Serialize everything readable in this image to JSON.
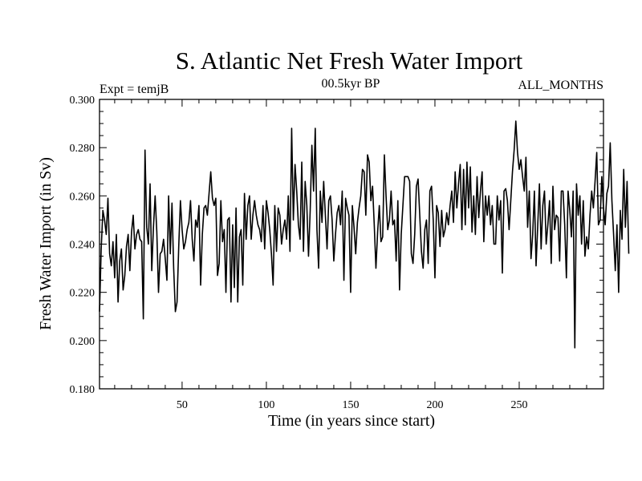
{
  "chart_data": {
    "type": "line",
    "title": "S. Atlantic Net Fresh Water Import",
    "subtitle_left": "Expt = temjB",
    "subtitle_center": "00.5kyr BP",
    "subtitle_right": "ALL_MONTHS",
    "xlabel": "Time (in years since start)",
    "ylabel": "Fresh Water Import (in Sv)",
    "xlim": [
      1,
      300
    ],
    "ylim": [
      0.18,
      0.3
    ],
    "x_ticks": [
      50,
      100,
      150,
      200,
      250
    ],
    "x_tick_labels": [
      "50",
      "100",
      "150",
      "200",
      "250"
    ],
    "y_ticks": [
      0.18,
      0.2,
      0.22,
      0.24,
      0.26,
      0.28,
      0.3
    ],
    "y_tick_labels": [
      "0.180",
      "0.200",
      "0.220",
      "0.240",
      "0.260",
      "0.280",
      "0.300"
    ],
    "series": [
      {
        "name": "S. Atlantic Net Fresh Water Import",
        "x_start": 1,
        "x_step": 1,
        "values": [
          0.212,
          0.238,
          0.254,
          0.25,
          0.244,
          0.259,
          0.236,
          0.231,
          0.241,
          0.226,
          0.244,
          0.216,
          0.233,
          0.238,
          0.221,
          0.227,
          0.239,
          0.244,
          0.229,
          0.245,
          0.252,
          0.238,
          0.244,
          0.246,
          0.242,
          0.241,
          0.209,
          0.279,
          0.247,
          0.24,
          0.265,
          0.229,
          0.247,
          0.26,
          0.245,
          0.22,
          0.236,
          0.237,
          0.242,
          0.234,
          0.225,
          0.26,
          0.236,
          0.257,
          0.23,
          0.212,
          0.216,
          0.239,
          0.258,
          0.246,
          0.238,
          0.241,
          0.246,
          0.249,
          0.258,
          0.242,
          0.233,
          0.25,
          0.247,
          0.256,
          0.223,
          0.244,
          0.255,
          0.256,
          0.252,
          0.261,
          0.27,
          0.259,
          0.256,
          0.259,
          0.227,
          0.232,
          0.258,
          0.241,
          0.246,
          0.22,
          0.25,
          0.251,
          0.216,
          0.248,
          0.222,
          0.255,
          0.216,
          0.243,
          0.246,
          0.223,
          0.261,
          0.242,
          0.256,
          0.26,
          0.242,
          0.252,
          0.258,
          0.252,
          0.248,
          0.246,
          0.241,
          0.256,
          0.238,
          0.258,
          0.253,
          0.246,
          0.236,
          0.223,
          0.256,
          0.237,
          0.255,
          0.252,
          0.24,
          0.246,
          0.25,
          0.242,
          0.26,
          0.237,
          0.288,
          0.25,
          0.273,
          0.262,
          0.248,
          0.242,
          0.274,
          0.237,
          0.266,
          0.256,
          0.235,
          0.254,
          0.281,
          0.262,
          0.288,
          0.246,
          0.23,
          0.262,
          0.249,
          0.266,
          0.252,
          0.238,
          0.258,
          0.26,
          0.25,
          0.233,
          0.244,
          0.253,
          0.256,
          0.248,
          0.262,
          0.225,
          0.259,
          0.255,
          0.252,
          0.22,
          0.256,
          0.247,
          0.236,
          0.249,
          0.255,
          0.26,
          0.271,
          0.27,
          0.252,
          0.277,
          0.274,
          0.258,
          0.264,
          0.248,
          0.23,
          0.245,
          0.256,
          0.241,
          0.243,
          0.277,
          0.26,
          0.246,
          0.25,
          0.262,
          0.248,
          0.25,
          0.233,
          0.258,
          0.221,
          0.244,
          0.256,
          0.268,
          0.268,
          0.268,
          0.266,
          0.236,
          0.232,
          0.244,
          0.264,
          0.267,
          0.252,
          0.237,
          0.23,
          0.246,
          0.25,
          0.232,
          0.262,
          0.264,
          0.25,
          0.226,
          0.256,
          0.253,
          0.239,
          0.254,
          0.243,
          0.246,
          0.253,
          0.248,
          0.256,
          0.262,
          0.249,
          0.27,
          0.255,
          0.265,
          0.273,
          0.246,
          0.271,
          0.248,
          0.274,
          0.255,
          0.272,
          0.245,
          0.26,
          0.244,
          0.268,
          0.251,
          0.262,
          0.27,
          0.241,
          0.26,
          0.252,
          0.26,
          0.248,
          0.256,
          0.24,
          0.24,
          0.26,
          0.25,
          0.258,
          0.228,
          0.262,
          0.263,
          0.258,
          0.246,
          0.258,
          0.27,
          0.279,
          0.291,
          0.278,
          0.271,
          0.275,
          0.268,
          0.262,
          0.276,
          0.247,
          0.262,
          0.234,
          0.244,
          0.262,
          0.231,
          0.248,
          0.265,
          0.238,
          0.256,
          0.262,
          0.24,
          0.248,
          0.258,
          0.232,
          0.264,
          0.246,
          0.252,
          0.251,
          0.233,
          0.262,
          0.262,
          0.248,
          0.226,
          0.262,
          0.254,
          0.243,
          0.262,
          0.197,
          0.265,
          0.252,
          0.26,
          0.24,
          0.258,
          0.235,
          0.243,
          0.238,
          0.252,
          0.262,
          0.255,
          0.266,
          0.278,
          0.248,
          0.25,
          0.268,
          0.255,
          0.248,
          0.261,
          0.264,
          0.282,
          0.258,
          0.244,
          0.229,
          0.248,
          0.22,
          0.254,
          0.242,
          0.271,
          0.247,
          0.266,
          0.236
        ]
      }
    ]
  }
}
